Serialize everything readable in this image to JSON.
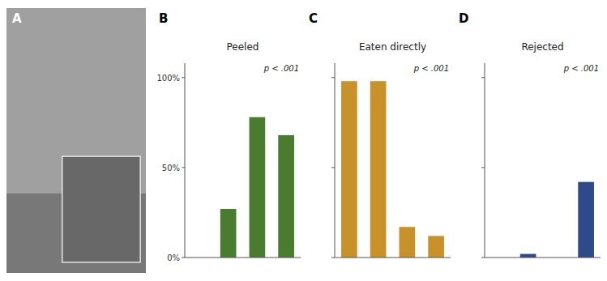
{
  "chart_data": [
    {
      "type": "bar",
      "title": "Peeled",
      "categories": [
        null,
        null,
        null,
        null
      ],
      "values": [
        0,
        27,
        78,
        68
      ],
      "color": "#4a7c2f",
      "ylim": [
        0,
        108
      ],
      "yticks": [
        {
          "value": 0,
          "label": "0%"
        },
        {
          "value": 50,
          "label": "50%"
        },
        {
          "value": 100,
          "label": "100%"
        }
      ],
      "grid": false,
      "tick_labels": "y",
      "annotations": [
        "A",
        "B",
        "p < .001"
      ]
    },
    {
      "type": "bar",
      "title": "Eaten directly",
      "categories": [
        null,
        null,
        null,
        null
      ],
      "values": [
        98,
        98,
        17,
        12
      ],
      "color": "#c8912a",
      "ylim": [
        0,
        108
      ],
      "yticks": [
        0,
        50,
        100
      ],
      "grid": false,
      "tick_labels": false,
      "annotations": [
        "C",
        "p < .001"
      ]
    },
    {
      "type": "bar",
      "title": "Rejected",
      "categories": [
        null,
        null,
        null,
        null
      ],
      "values": [
        0,
        2,
        0,
        42
      ],
      "color": "#2e4a8a",
      "ylim": [
        0,
        108
      ],
      "yticks": [
        0,
        50,
        100
      ],
      "grid": false,
      "tick_labels": false,
      "annotations": [
        "D",
        "p < .001"
      ]
    }
  ]
}
